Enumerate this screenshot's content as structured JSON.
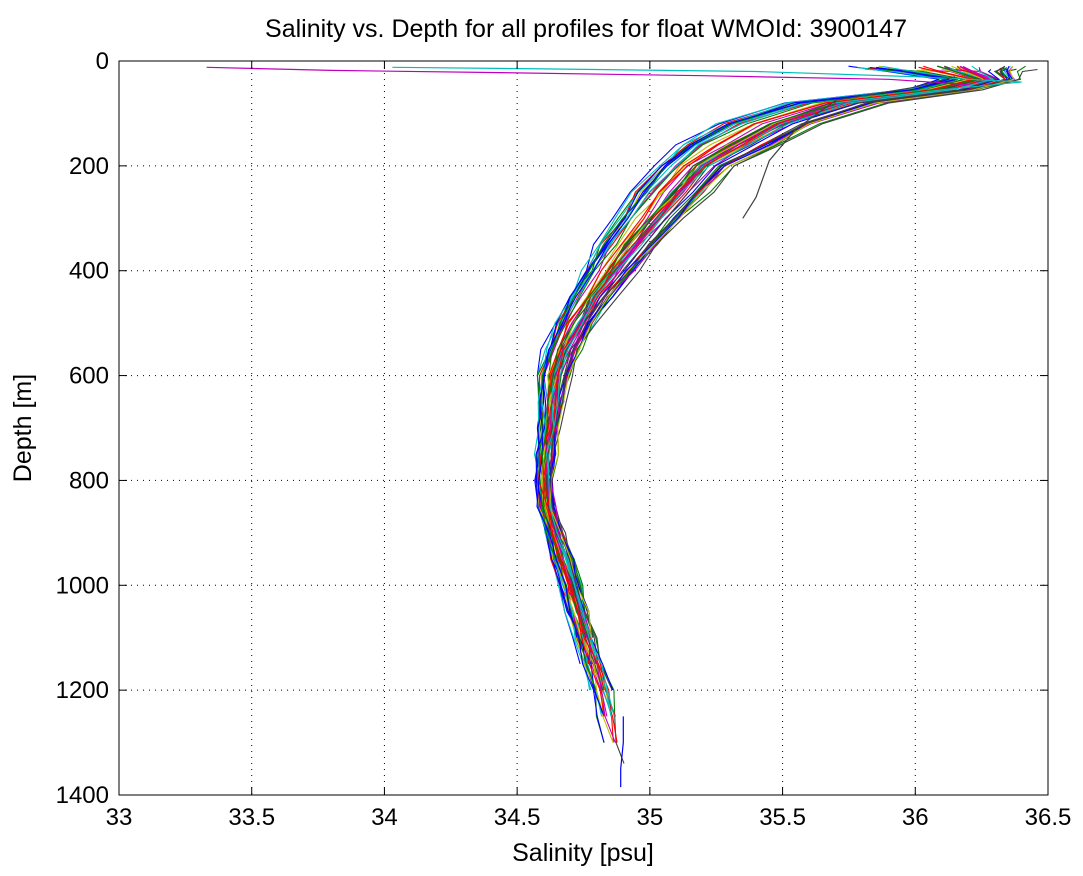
{
  "chart_data": {
    "type": "line",
    "title": "Salinity vs. Depth for all profiles for float WMOId: 3900147",
    "xlabel": "Salinity [psu]",
    "ylabel": "Depth [m]",
    "xlim": [
      33,
      36.5
    ],
    "ylim": [
      0,
      1400
    ],
    "y_axis_reversed": true,
    "grid": "dotted",
    "legend": "none",
    "xticks": [
      "33",
      "33.5",
      "34",
      "34.5",
      "35",
      "35.5",
      "36",
      "36.5"
    ],
    "yticks": [
      "0",
      "200",
      "400",
      "600",
      "800",
      "1000",
      "1200",
      "1400"
    ],
    "series_colors": [
      "#0000ff",
      "#008000",
      "#ff0000",
      "#00bfbf",
      "#bf00bf",
      "#bfbf00",
      "#404040"
    ],
    "profile_count": 60,
    "envelope": {
      "depth": [
        10,
        20,
        35,
        55,
        80,
        120,
        160,
        200,
        250,
        300,
        350,
        400,
        450,
        500,
        550,
        600,
        650,
        700,
        750,
        800,
        850,
        900,
        950,
        1000,
        1050,
        1100,
        1150,
        1200,
        1250,
        1300,
        1340
      ],
      "salinity_median": [
        36.1,
        36.15,
        36.25,
        36.1,
        35.7,
        35.45,
        35.3,
        35.17,
        35.08,
        35.0,
        34.92,
        34.85,
        34.78,
        34.72,
        34.67,
        34.64,
        34.63,
        34.62,
        34.61,
        34.6,
        34.61,
        34.64,
        34.67,
        34.7,
        34.73,
        34.76,
        34.79,
        34.82,
        34.84,
        34.86,
        34.87
      ],
      "salinity_spread": [
        0.35,
        0.25,
        0.15,
        0.15,
        0.2,
        0.2,
        0.2,
        0.15,
        0.15,
        0.13,
        0.12,
        0.1,
        0.09,
        0.08,
        0.07,
        0.06,
        0.05,
        0.04,
        0.04,
        0.03,
        0.03,
        0.03,
        0.04,
        0.04,
        0.04,
        0.04,
        0.04,
        0.04,
        0.04,
        0.03,
        0.03
      ]
    },
    "outlier_profiles": [
      {
        "name": "",
        "color": "#bf00bf",
        "x": [
          33.33,
          33.8,
          34.4,
          35.2,
          35.9,
          36.2
        ],
        "y": [
          12,
          18,
          22,
          28,
          35,
          45
        ]
      },
      {
        "name": "",
        "color": "#00bfbf",
        "x": [
          34.03,
          34.6,
          35.4,
          36.0,
          36.4,
          36.1,
          35.7
        ],
        "y": [
          12,
          15,
          20,
          30,
          40,
          55,
          80
        ]
      },
      {
        "name": "",
        "color": "#404040",
        "x": [
          36.15,
          36.0,
          35.7,
          35.55,
          35.45,
          35.4,
          35.35
        ],
        "y": [
          30,
          50,
          75,
          130,
          190,
          260,
          300
        ]
      },
      {
        "name": "",
        "color": "#0000ff",
        "x": [
          34.9,
          34.9,
          34.89,
          34.89
        ],
        "y": [
          1250,
          1300,
          1350,
          1385
        ]
      }
    ]
  }
}
